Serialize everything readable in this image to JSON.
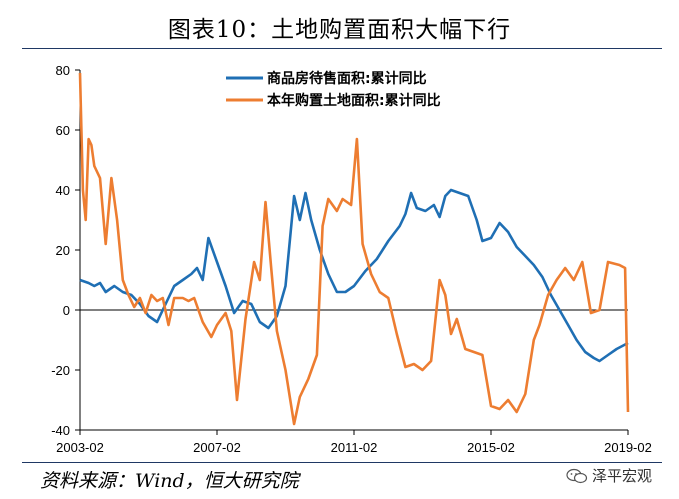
{
  "title": "图表10：土地购置面积大幅下行",
  "source": "资料来源：Wind，恒大研究院",
  "watermark": "泽平宏观",
  "chart_data": {
    "type": "line",
    "x_start": "2003-02",
    "x_end": "2019-02",
    "x_tick_labels": [
      "2003-02",
      "2007-02",
      "2011-02",
      "2015-02",
      "2019-02"
    ],
    "ylim": [
      -40,
      80
    ],
    "y_ticks": [
      -40,
      -20,
      0,
      20,
      40,
      60,
      80
    ],
    "legend_position": "top-right",
    "grid": false,
    "series": [
      {
        "name": "商品房待售面积:累计同比",
        "color": "#1f6fb4",
        "points": [
          [
            "2003-02",
            10
          ],
          [
            "2003-05",
            9
          ],
          [
            "2003-07",
            8
          ],
          [
            "2003-09",
            9
          ],
          [
            "2003-11",
            6
          ],
          [
            "2004-02",
            8
          ],
          [
            "2004-05",
            6
          ],
          [
            "2004-08",
            5
          ],
          [
            "2004-11",
            2
          ],
          [
            "2005-02",
            -2
          ],
          [
            "2005-05",
            -4
          ],
          [
            "2005-08",
            2
          ],
          [
            "2005-11",
            8
          ],
          [
            "2006-02",
            10
          ],
          [
            "2006-05",
            12
          ],
          [
            "2006-07",
            14
          ],
          [
            "2006-09",
            10
          ],
          [
            "2006-11",
            24
          ],
          [
            "2007-02",
            16
          ],
          [
            "2007-05",
            8
          ],
          [
            "2007-08",
            -1
          ],
          [
            "2007-11",
            3
          ],
          [
            "2008-02",
            2
          ],
          [
            "2008-05",
            -4
          ],
          [
            "2008-08",
            -6
          ],
          [
            "2008-11",
            -2
          ],
          [
            "2009-02",
            8
          ],
          [
            "2009-05",
            38
          ],
          [
            "2009-07",
            30
          ],
          [
            "2009-09",
            39
          ],
          [
            "2009-11",
            30
          ],
          [
            "2010-02",
            20
          ],
          [
            "2010-05",
            12
          ],
          [
            "2010-08",
            6
          ],
          [
            "2010-11",
            6
          ],
          [
            "2011-02",
            8
          ],
          [
            "2011-06",
            13
          ],
          [
            "2011-10",
            17
          ],
          [
            "2012-02",
            23
          ],
          [
            "2012-06",
            28
          ],
          [
            "2012-08",
            32
          ],
          [
            "2012-10",
            39
          ],
          [
            "2012-12",
            34
          ],
          [
            "2013-03",
            33
          ],
          [
            "2013-06",
            35
          ],
          [
            "2013-08",
            31
          ],
          [
            "2013-10",
            38
          ],
          [
            "2013-12",
            40
          ],
          [
            "2014-03",
            39
          ],
          [
            "2014-06",
            38
          ],
          [
            "2014-09",
            30
          ],
          [
            "2014-11",
            23
          ],
          [
            "2015-02",
            24
          ],
          [
            "2015-05",
            29
          ],
          [
            "2015-08",
            26
          ],
          [
            "2015-11",
            21
          ],
          [
            "2016-02",
            18
          ],
          [
            "2016-05",
            15
          ],
          [
            "2016-08",
            11
          ],
          [
            "2016-11",
            5
          ],
          [
            "2017-02",
            0
          ],
          [
            "2017-05",
            -5
          ],
          [
            "2017-08",
            -10
          ],
          [
            "2017-11",
            -14
          ],
          [
            "2018-02",
            -16
          ],
          [
            "2018-04",
            -17
          ],
          [
            "2018-07",
            -15
          ],
          [
            "2018-10",
            -13
          ],
          [
            "2019-02",
            -11
          ]
        ]
      },
      {
        "name": "本年购置土地面积:累计同比",
        "color": "#ed7d31",
        "points": [
          [
            "2003-02",
            79
          ],
          [
            "2003-03",
            40
          ],
          [
            "2003-04",
            30
          ],
          [
            "2003-05",
            57
          ],
          [
            "2003-06",
            55
          ],
          [
            "2003-07",
            48
          ],
          [
            "2003-09",
            44
          ],
          [
            "2003-11",
            22
          ],
          [
            "2004-01",
            44
          ],
          [
            "2004-03",
            30
          ],
          [
            "2004-05",
            10
          ],
          [
            "2004-07",
            5
          ],
          [
            "2004-09",
            1
          ],
          [
            "2004-11",
            4
          ],
          [
            "2005-01",
            -1
          ],
          [
            "2005-03",
            5
          ],
          [
            "2005-05",
            3
          ],
          [
            "2005-07",
            4
          ],
          [
            "2005-09",
            -5
          ],
          [
            "2005-11",
            4
          ],
          [
            "2006-02",
            4
          ],
          [
            "2006-04",
            3
          ],
          [
            "2006-06",
            4
          ],
          [
            "2006-09",
            -4
          ],
          [
            "2006-12",
            -9
          ],
          [
            "2007-02",
            -5
          ],
          [
            "2007-05",
            -1
          ],
          [
            "2007-07",
            -7
          ],
          [
            "2007-09",
            -30
          ],
          [
            "2007-12",
            -3
          ],
          [
            "2008-03",
            16
          ],
          [
            "2008-05",
            10
          ],
          [
            "2008-07",
            36
          ],
          [
            "2008-09",
            14
          ],
          [
            "2008-11",
            -7
          ],
          [
            "2009-02",
            -20
          ],
          [
            "2009-05",
            -38
          ],
          [
            "2009-07",
            -29
          ],
          [
            "2009-10",
            -23
          ],
          [
            "2010-01",
            -15
          ],
          [
            "2010-03",
            28
          ],
          [
            "2010-05",
            37
          ],
          [
            "2010-08",
            33
          ],
          [
            "2010-10",
            37
          ],
          [
            "2011-01",
            35
          ],
          [
            "2011-03",
            57
          ],
          [
            "2011-05",
            22
          ],
          [
            "2011-08",
            12
          ],
          [
            "2011-11",
            6
          ],
          [
            "2012-02",
            4
          ],
          [
            "2012-05",
            -8
          ],
          [
            "2012-08",
            -19
          ],
          [
            "2012-11",
            -18
          ],
          [
            "2013-02",
            -20
          ],
          [
            "2013-05",
            -17
          ],
          [
            "2013-08",
            10
          ],
          [
            "2013-10",
            5
          ],
          [
            "2013-12",
            -8
          ],
          [
            "2014-02",
            -3
          ],
          [
            "2014-05",
            -13
          ],
          [
            "2014-08",
            -14
          ],
          [
            "2014-11",
            -15
          ],
          [
            "2015-02",
            -32
          ],
          [
            "2015-05",
            -33
          ],
          [
            "2015-08",
            -30
          ],
          [
            "2015-11",
            -34
          ],
          [
            "2016-02",
            -28
          ],
          [
            "2016-05",
            -10
          ],
          [
            "2016-07",
            -5
          ],
          [
            "2016-10",
            5
          ],
          [
            "2017-01",
            10
          ],
          [
            "2017-04",
            14
          ],
          [
            "2017-07",
            10
          ],
          [
            "2017-10",
            16
          ],
          [
            "2018-01",
            -1
          ],
          [
            "2018-04",
            0
          ],
          [
            "2018-07",
            16
          ],
          [
            "2018-11",
            15
          ],
          [
            "2019-01",
            14
          ],
          [
            "2019-02",
            -34
          ]
        ]
      }
    ]
  }
}
